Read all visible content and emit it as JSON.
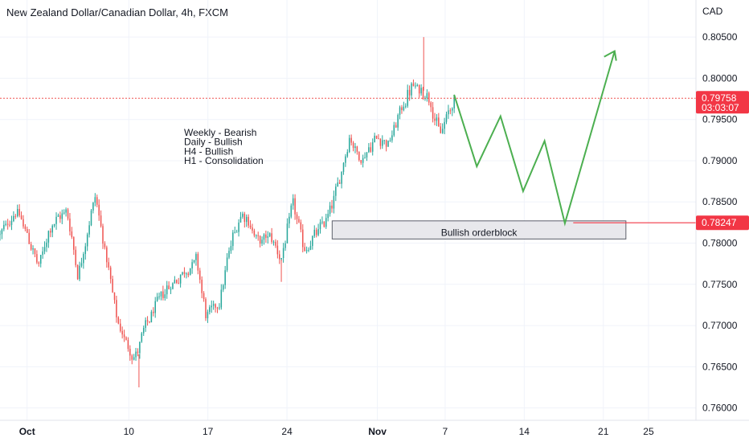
{
  "header": {
    "title": "New Zealand Dollar/Canadian Dollar, 4h, FXCM"
  },
  "colors": {
    "up": "#26a69a",
    "down": "#ef5350",
    "grid": "#f0f3fa",
    "projection": "#4caf50",
    "current_price_line": "#ef5350",
    "level_tag": "#f23645"
  },
  "chart_data": {
    "type": "candlestick",
    "currency_label": "CAD",
    "y_ticks": [
      "0.80500",
      "0.80000",
      "0.79500",
      "0.79000",
      "0.78500",
      "0.78000",
      "0.77500",
      "0.77000",
      "0.76500",
      "0.76000"
    ],
    "y_range": [
      0.7585,
      0.8095
    ],
    "x_ticks": [
      {
        "label": "Oct",
        "day": 1,
        "bold": true
      },
      {
        "label": "10",
        "day": 10,
        "bold": false
      },
      {
        "label": "17",
        "day": 17,
        "bold": false
      },
      {
        "label": "24",
        "day": 24,
        "bold": false
      },
      {
        "label": "Nov",
        "day": 32,
        "bold": true
      },
      {
        "label": "7",
        "day": 38,
        "bold": false
      },
      {
        "label": "14",
        "day": 45,
        "bold": false
      },
      {
        "label": "21",
        "day": 52,
        "bold": false
      },
      {
        "label": "25",
        "day": 56,
        "bold": false
      }
    ],
    "x_range": [
      -1.4,
      60.2
    ],
    "current_price": {
      "value": "0.79758",
      "countdown": "03:03:07",
      "y": 0.79758
    },
    "level_price": {
      "value": "0.78247",
      "y": 0.78247
    },
    "annotation_lines": [
      "Weekly - Bearish",
      "Daily - Bullish",
      "H4 - Bullish",
      "H1 - Consolidation"
    ],
    "orderblock": {
      "label": "Bullish orderblock",
      "top": 0.7827,
      "bottom": 0.7805,
      "x_start": 28.0,
      "x_end": 54.0
    },
    "projection_path": [
      [
        38.8,
        0.798
      ],
      [
        40.8,
        0.7893
      ],
      [
        42.9,
        0.7954
      ],
      [
        44.9,
        0.7863
      ],
      [
        46.8,
        0.7924
      ],
      [
        48.6,
        0.7824
      ],
      [
        53.0,
        0.8033
      ]
    ],
    "anchors": [
      {
        "day": -1.4,
        "price": 0.781
      },
      {
        "day": 0.0,
        "price": 0.784
      },
      {
        "day": 1.0,
        "price": 0.781
      },
      {
        "day": 2.0,
        "price": 0.777
      },
      {
        "day": 3.0,
        "price": 0.782
      },
      {
        "day": 4.5,
        "price": 0.784
      },
      {
        "day": 5.5,
        "price": 0.776
      },
      {
        "day": 7.0,
        "price": 0.786
      },
      {
        "day": 8.0,
        "price": 0.778
      },
      {
        "day": 9.0,
        "price": 0.77
      },
      {
        "day": 10.5,
        "price": 0.766
      },
      {
        "day": 11.5,
        "price": 0.77
      },
      {
        "day": 13.0,
        "price": 0.774
      },
      {
        "day": 14.5,
        "price": 0.776
      },
      {
        "day": 16.0,
        "price": 0.778
      },
      {
        "day": 16.8,
        "price": 0.771
      },
      {
        "day": 18.0,
        "price": 0.773
      },
      {
        "day": 19.0,
        "price": 0.78
      },
      {
        "day": 20.0,
        "price": 0.784
      },
      {
        "day": 21.5,
        "price": 0.78
      },
      {
        "day": 22.5,
        "price": 0.781
      },
      {
        "day": 23.5,
        "price": 0.778
      },
      {
        "day": 24.5,
        "price": 0.785
      },
      {
        "day": 25.5,
        "price": 0.779
      },
      {
        "day": 26.5,
        "price": 0.781
      },
      {
        "day": 27.5,
        "price": 0.783
      },
      {
        "day": 28.5,
        "price": 0.787
      },
      {
        "day": 29.5,
        "price": 0.793
      },
      {
        "day": 30.5,
        "price": 0.79
      },
      {
        "day": 32.0,
        "price": 0.793
      },
      {
        "day": 33.0,
        "price": 0.792
      },
      {
        "day": 34.0,
        "price": 0.796
      },
      {
        "day": 35.0,
        "price": 0.799
      },
      {
        "day": 36.5,
        "price": 0.798
      },
      {
        "day": 37.5,
        "price": 0.793
      },
      {
        "day": 38.3,
        "price": 0.796
      },
      {
        "day": 39.0,
        "price": 0.798
      },
      {
        "day": 40.0,
        "price": 0.7975
      }
    ],
    "candle_range": [
      -1.4,
      38.8
    ],
    "candle_count": 235,
    "special_wicks": [
      {
        "day": 36.1,
        "high": 0.805,
        "low": 0.7985
      },
      {
        "day": 10.9,
        "high": 0.7665,
        "low": 0.7625
      },
      {
        "day": 23.5,
        "high": 0.778,
        "low": 0.7753
      }
    ]
  }
}
